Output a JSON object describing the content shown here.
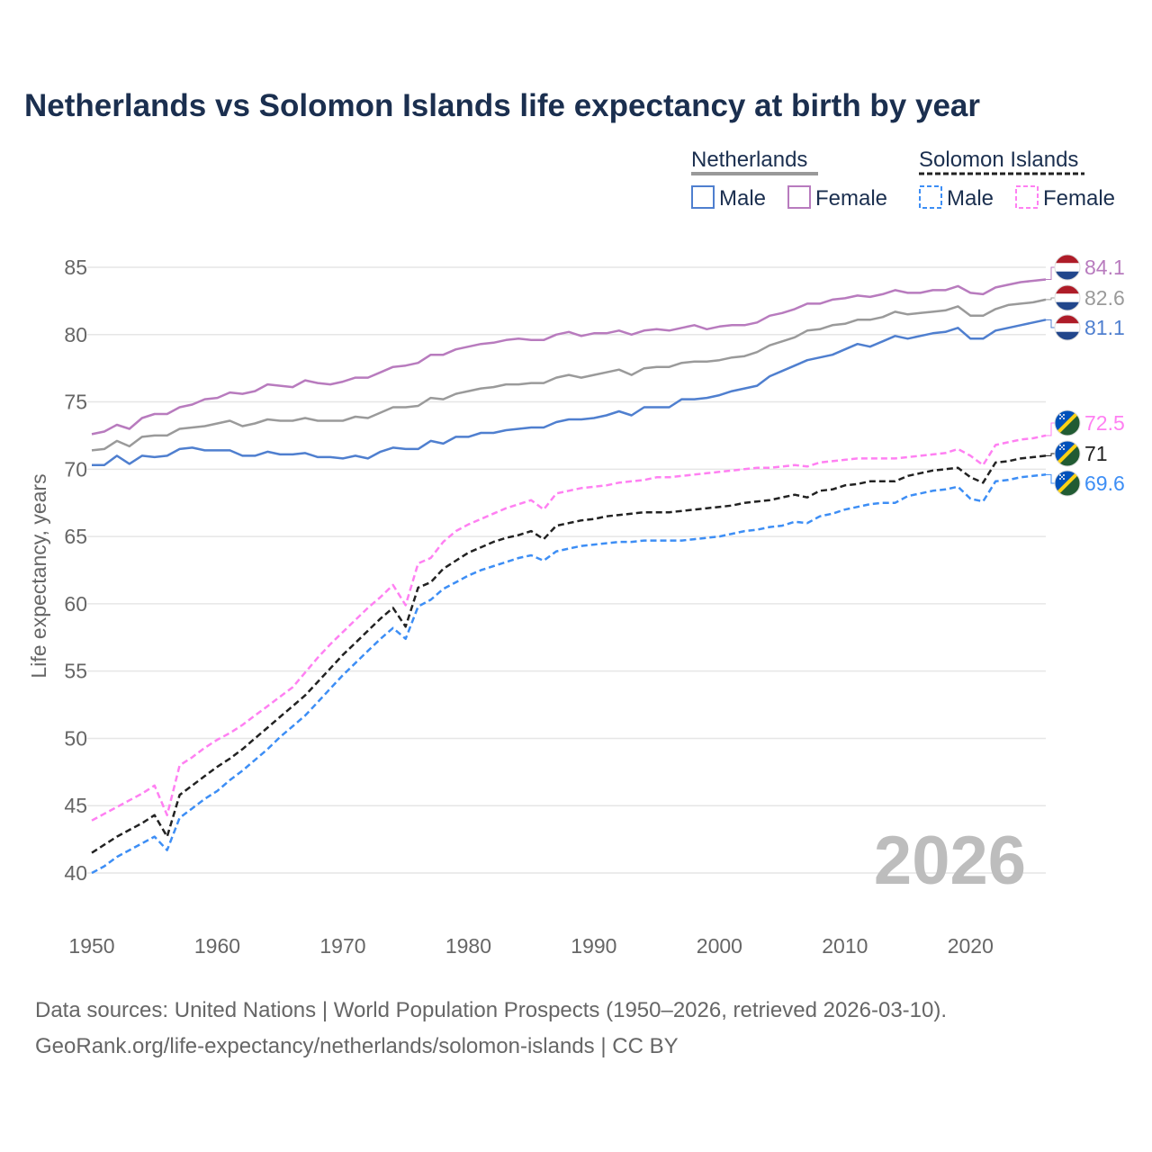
{
  "chart_data": {
    "type": "line",
    "title": "Netherlands vs Solomon Islands life expectancy at birth by year",
    "ylabel": "Life expectancy, years",
    "xlabel": "",
    "xlim": [
      1950,
      2026
    ],
    "ylim": [
      40,
      85
    ],
    "x_ticks": [
      1950,
      1960,
      1970,
      1980,
      1990,
      2000,
      2010,
      2020
    ],
    "y_ticks": [
      40,
      45,
      50,
      55,
      60,
      65,
      70,
      75,
      80,
      85
    ],
    "grid": true,
    "year_watermark": "2026",
    "legend": {
      "placement": "top-right",
      "groups": [
        {
          "name": "Netherlands",
          "style": "solid",
          "items": [
            "Male",
            "Female"
          ]
        },
        {
          "name": "Solomon Islands",
          "style": "dashed",
          "items": [
            "Male",
            "Female"
          ]
        }
      ]
    },
    "x_start": 1950,
    "series": [
      {
        "name": "Netherlands Female",
        "country": "Netherlands",
        "style": "solid",
        "color": "#b87bbe",
        "end_label": "84.1",
        "values": [
          72.6,
          72.8,
          73.3,
          73.0,
          73.8,
          74.1,
          74.1,
          74.6,
          74.8,
          75.2,
          75.3,
          75.7,
          75.6,
          75.8,
          76.3,
          76.2,
          76.1,
          76.6,
          76.4,
          76.3,
          76.5,
          76.8,
          76.8,
          77.2,
          77.6,
          77.7,
          77.9,
          78.5,
          78.5,
          78.9,
          79.1,
          79.3,
          79.4,
          79.6,
          79.7,
          79.6,
          79.6,
          80.0,
          80.2,
          79.9,
          80.1,
          80.1,
          80.3,
          80.0,
          80.3,
          80.4,
          80.3,
          80.5,
          80.7,
          80.4,
          80.6,
          80.7,
          80.7,
          80.9,
          81.4,
          81.6,
          81.9,
          82.3,
          82.3,
          82.6,
          82.7,
          82.9,
          82.8,
          83.0,
          83.3,
          83.1,
          83.1,
          83.3,
          83.3,
          83.6,
          83.1,
          83.0,
          83.5,
          83.7,
          83.9,
          84.0,
          84.1
        ]
      },
      {
        "name": "Netherlands Total",
        "country": "Netherlands",
        "style": "solid",
        "color": "#9a9a9a",
        "end_label": "82.6",
        "values": [
          71.4,
          71.5,
          72.1,
          71.7,
          72.4,
          72.5,
          72.5,
          73.0,
          73.1,
          73.2,
          73.4,
          73.6,
          73.2,
          73.4,
          73.7,
          73.6,
          73.6,
          73.8,
          73.6,
          73.6,
          73.6,
          73.9,
          73.8,
          74.2,
          74.6,
          74.6,
          74.7,
          75.3,
          75.2,
          75.6,
          75.8,
          76.0,
          76.1,
          76.3,
          76.3,
          76.4,
          76.4,
          76.8,
          77.0,
          76.8,
          77.0,
          77.2,
          77.4,
          77.0,
          77.5,
          77.6,
          77.6,
          77.9,
          78.0,
          78.0,
          78.1,
          78.3,
          78.4,
          78.7,
          79.2,
          79.5,
          79.8,
          80.3,
          80.4,
          80.7,
          80.8,
          81.1,
          81.1,
          81.3,
          81.7,
          81.5,
          81.6,
          81.7,
          81.8,
          82.1,
          81.4,
          81.4,
          81.9,
          82.2,
          82.3,
          82.4,
          82.6
        ]
      },
      {
        "name": "Netherlands Male",
        "country": "Netherlands",
        "style": "solid",
        "color": "#4f7fcf",
        "end_label": "81.1",
        "values": [
          70.3,
          70.3,
          71.0,
          70.4,
          71.0,
          70.9,
          71.0,
          71.5,
          71.6,
          71.4,
          71.4,
          71.4,
          71.0,
          71.0,
          71.3,
          71.1,
          71.1,
          71.2,
          70.9,
          70.9,
          70.8,
          71.0,
          70.8,
          71.3,
          71.6,
          71.5,
          71.5,
          72.1,
          71.9,
          72.4,
          72.4,
          72.7,
          72.7,
          72.9,
          73.0,
          73.1,
          73.1,
          73.5,
          73.7,
          73.7,
          73.8,
          74.0,
          74.3,
          74.0,
          74.6,
          74.6,
          74.6,
          75.2,
          75.2,
          75.3,
          75.5,
          75.8,
          76.0,
          76.2,
          76.9,
          77.3,
          77.7,
          78.1,
          78.3,
          78.5,
          78.9,
          79.3,
          79.1,
          79.5,
          79.9,
          79.7,
          79.9,
          80.1,
          80.2,
          80.5,
          79.7,
          79.7,
          80.3,
          80.5,
          80.7,
          80.9,
          81.1
        ]
      },
      {
        "name": "Solomon Islands Female",
        "country": "Solomon Islands",
        "style": "dashed",
        "color": "#ff80f2",
        "end_label": "72.5",
        "values": [
          43.9,
          44.4,
          44.9,
          45.4,
          45.9,
          46.5,
          44.3,
          48.0,
          48.6,
          49.3,
          49.9,
          50.4,
          51.0,
          51.7,
          52.4,
          53.1,
          53.8,
          54.9,
          56.0,
          57.0,
          57.9,
          58.8,
          59.7,
          60.5,
          61.4,
          59.9,
          63.0,
          63.4,
          64.6,
          65.4,
          65.9,
          66.3,
          66.7,
          67.1,
          67.4,
          67.7,
          67.0,
          68.2,
          68.4,
          68.6,
          68.7,
          68.8,
          69.0,
          69.1,
          69.2,
          69.4,
          69.4,
          69.5,
          69.6,
          69.7,
          69.8,
          69.9,
          70.0,
          70.1,
          70.1,
          70.2,
          70.3,
          70.2,
          70.5,
          70.6,
          70.7,
          70.8,
          70.8,
          70.8,
          70.8,
          70.9,
          71.0,
          71.1,
          71.2,
          71.5,
          71.0,
          70.3,
          71.8,
          72.0,
          72.2,
          72.3,
          72.5
        ]
      },
      {
        "name": "Solomon Islands Total",
        "country": "Solomon Islands",
        "style": "dashed",
        "color": "#222222",
        "end_label": "71",
        "values": [
          41.5,
          42.1,
          42.7,
          43.2,
          43.7,
          44.3,
          42.7,
          45.8,
          46.5,
          47.2,
          47.9,
          48.5,
          49.2,
          50.0,
          50.8,
          51.6,
          52.4,
          53.2,
          54.2,
          55.2,
          56.2,
          57.1,
          58.0,
          58.9,
          59.7,
          58.3,
          61.2,
          61.6,
          62.6,
          63.2,
          63.8,
          64.2,
          64.6,
          64.9,
          65.1,
          65.4,
          64.8,
          65.8,
          66.0,
          66.2,
          66.3,
          66.5,
          66.6,
          66.7,
          66.8,
          66.8,
          66.8,
          66.9,
          67.0,
          67.1,
          67.2,
          67.3,
          67.5,
          67.6,
          67.7,
          67.9,
          68.1,
          67.9,
          68.4,
          68.5,
          68.8,
          68.9,
          69.1,
          69.1,
          69.1,
          69.5,
          69.7,
          69.9,
          70.0,
          70.1,
          69.4,
          69.0,
          70.5,
          70.6,
          70.8,
          70.9,
          71.0
        ]
      },
      {
        "name": "Solomon Islands Male",
        "country": "Solomon Islands",
        "style": "dashed",
        "color": "#3d8ef5",
        "end_label": "69.6",
        "values": [
          40.0,
          40.5,
          41.2,
          41.7,
          42.2,
          42.7,
          41.7,
          44.1,
          44.8,
          45.5,
          46.1,
          46.9,
          47.6,
          48.4,
          49.2,
          50.1,
          50.9,
          51.7,
          52.7,
          53.7,
          54.7,
          55.6,
          56.5,
          57.4,
          58.2,
          57.4,
          59.8,
          60.3,
          61.1,
          61.6,
          62.1,
          62.5,
          62.8,
          63.1,
          63.4,
          63.6,
          63.2,
          63.9,
          64.1,
          64.3,
          64.4,
          64.5,
          64.6,
          64.6,
          64.7,
          64.7,
          64.7,
          64.7,
          64.8,
          64.9,
          65.0,
          65.2,
          65.4,
          65.5,
          65.7,
          65.8,
          66.1,
          66.0,
          66.5,
          66.7,
          67.0,
          67.2,
          67.4,
          67.5,
          67.5,
          68.0,
          68.2,
          68.4,
          68.5,
          68.7,
          67.8,
          67.6,
          69.1,
          69.2,
          69.4,
          69.5,
          69.6
        ]
      }
    ]
  },
  "footer": {
    "line1": "Data sources: United Nations | World Population Prospects (1950–2026, retrieved 2026-03-10).",
    "line2": "GeoRank.org/life-expectancy/netherlands/solomon-islands | CC BY"
  },
  "colors": {
    "title": "#1b2f4f",
    "grid": "#e6e6e6",
    "axis_text": "#666666"
  }
}
